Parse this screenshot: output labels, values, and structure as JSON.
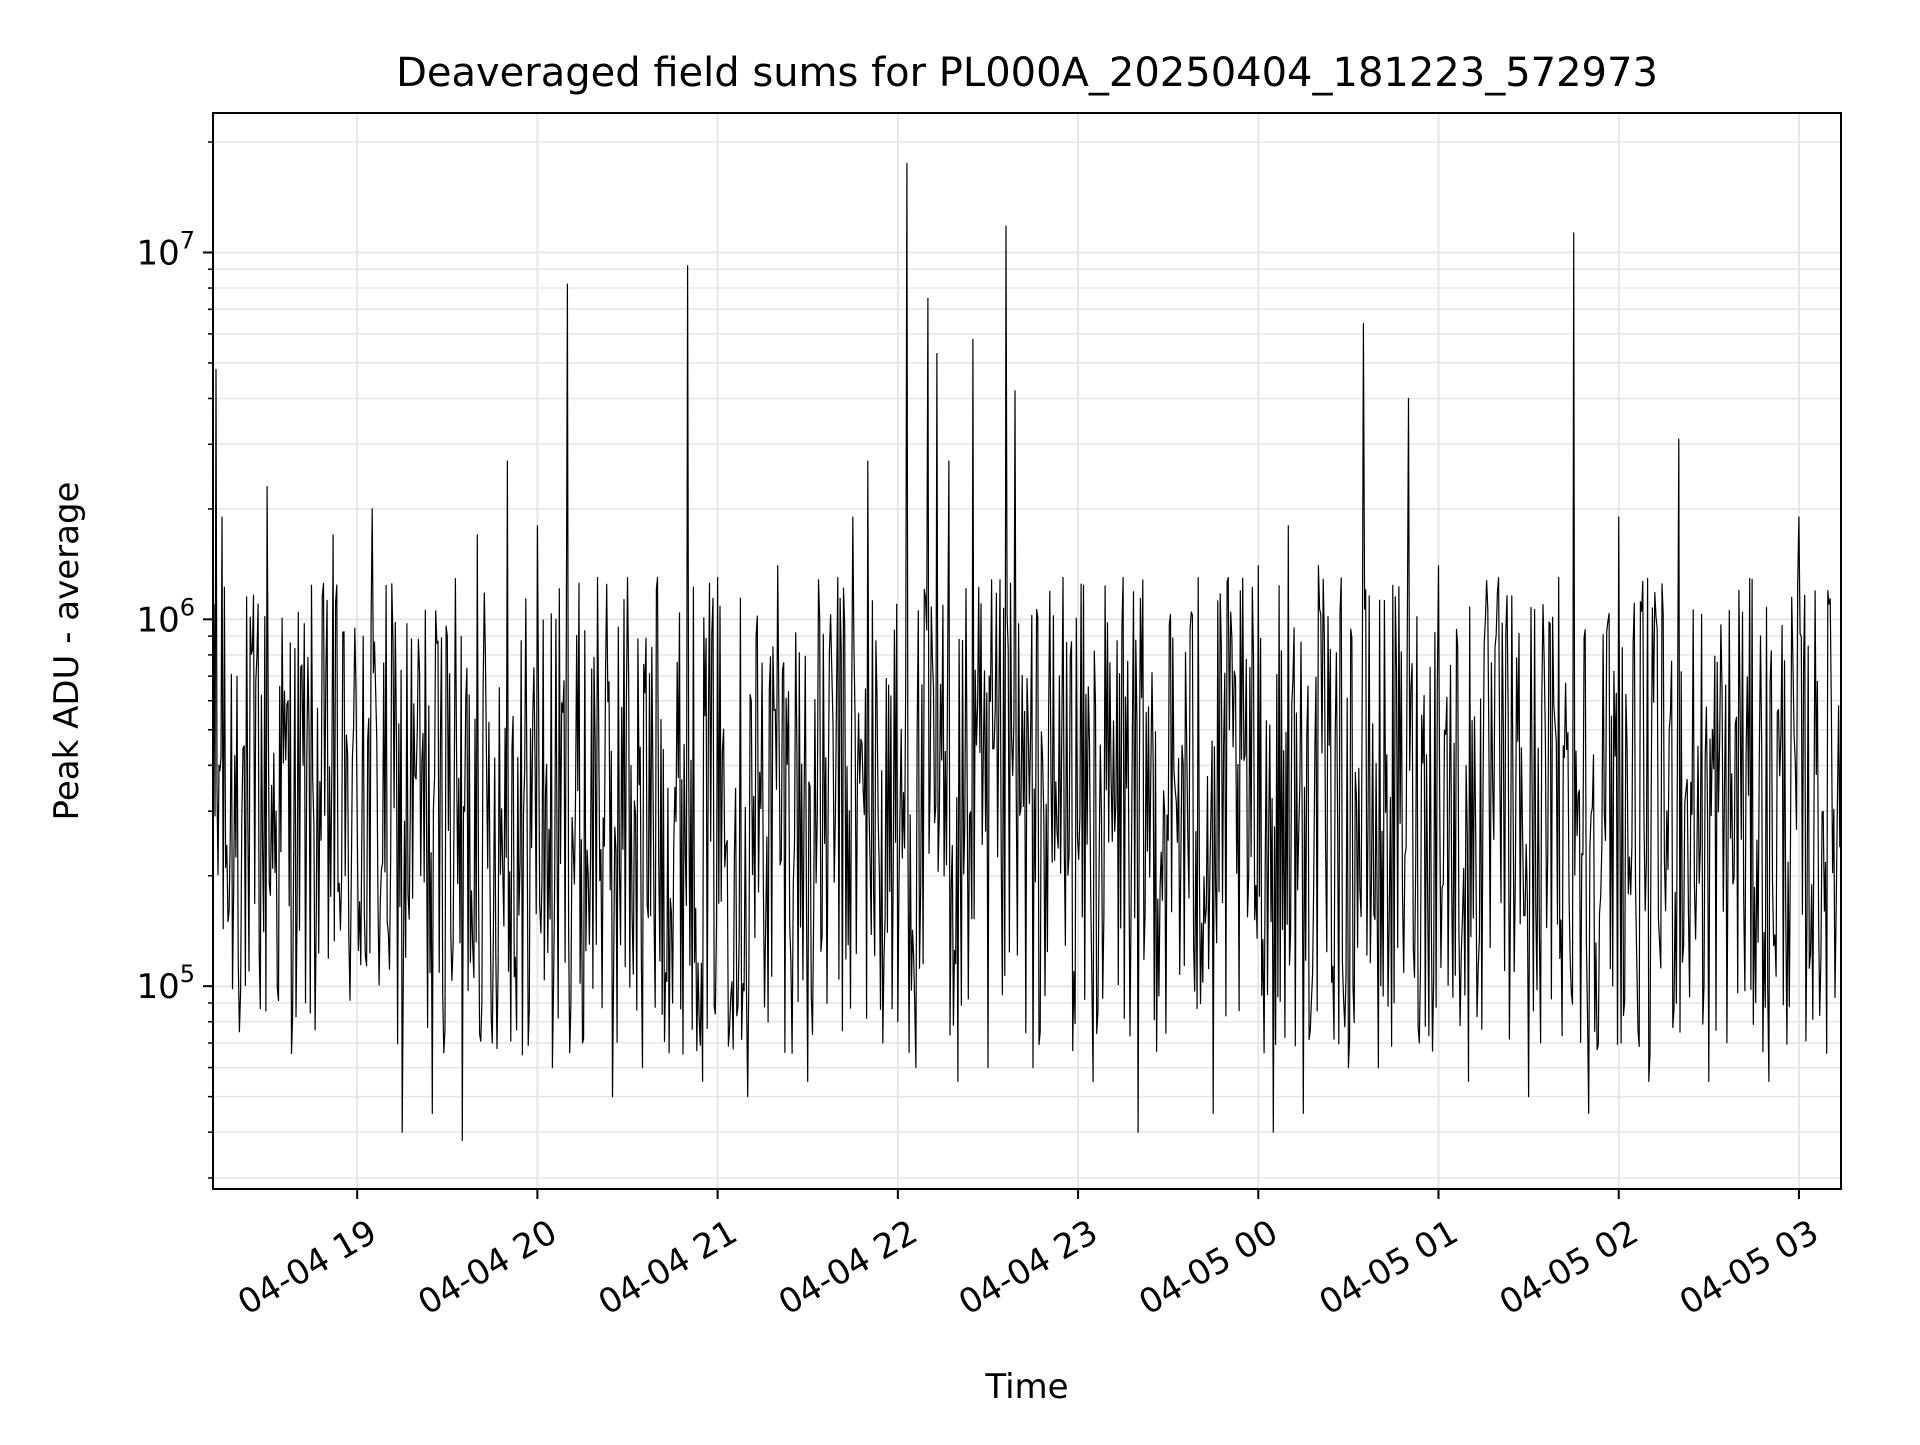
{
  "chart_data": {
    "type": "line",
    "title": "Deaveraged field sums for PL000A_20250404_181223_572973",
    "xlabel": "Time",
    "ylabel": "Peak ADU - average",
    "yscale": "log",
    "xlim": [
      "2025-04-04 18:12",
      "2025-04-05 03:14"
    ],
    "ylim": [
      28000,
      24000000
    ],
    "grid": true,
    "line_color": "#000000",
    "x_ticks": [
      {
        "label": "04-04 19",
        "t": "2025-04-04 19:00"
      },
      {
        "label": "04-04 20",
        "t": "2025-04-04 20:00"
      },
      {
        "label": "04-04 21",
        "t": "2025-04-04 21:00"
      },
      {
        "label": "04-04 22",
        "t": "2025-04-04 22:00"
      },
      {
        "label": "04-04 23",
        "t": "2025-04-04 23:00"
      },
      {
        "label": "04-05 00",
        "t": "2025-04-05 00:00"
      },
      {
        "label": "04-05 01",
        "t": "2025-04-05 01:00"
      },
      {
        "label": "04-05 02",
        "t": "2025-04-05 02:00"
      },
      {
        "label": "04-05 03",
        "t": "2025-04-05 03:00"
      }
    ],
    "y_ticks": [
      {
        "base": "10",
        "exp": "5",
        "value": 100000
      },
      {
        "base": "10",
        "exp": "6",
        "value": 1000000
      },
      {
        "base": "10",
        "exp": "7",
        "value": 10000000
      }
    ],
    "series": [
      {
        "points": [
          [
            "2025-04-04 18:12",
            900000
          ],
          [
            "2025-04-04 18:13",
            4800000
          ],
          [
            "2025-04-04 18:14",
            400000
          ],
          [
            "2025-04-04 18:15",
            1900000
          ],
          [
            "2025-04-04 18:17",
            150000
          ],
          [
            "2025-04-04 18:20",
            700000
          ],
          [
            "2025-04-04 18:24",
            110000
          ],
          [
            "2025-04-04 18:27",
            1100000
          ],
          [
            "2025-04-04 18:30",
            2300000
          ],
          [
            "2025-04-04 18:33",
            300000
          ],
          [
            "2025-04-04 18:37",
            600000
          ],
          [
            "2025-04-04 18:40",
            160000
          ],
          [
            "2025-04-04 18:44",
            500000
          ],
          [
            "2025-04-04 18:48",
            250000
          ],
          [
            "2025-04-04 18:52",
            1700000
          ],
          [
            "2025-04-04 18:56",
            200000
          ],
          [
            "2025-04-04 19:02",
            900000
          ],
          [
            "2025-04-04 19:05",
            2000000
          ],
          [
            "2025-04-04 19:10",
            150000
          ],
          [
            "2025-04-04 19:15",
            40000
          ],
          [
            "2025-04-04 19:20",
            500000
          ],
          [
            "2025-04-04 19:25",
            45000
          ],
          [
            "2025-04-04 19:30",
            900000
          ],
          [
            "2025-04-04 19:35",
            38000
          ],
          [
            "2025-04-04 19:40",
            1700000
          ],
          [
            "2025-04-04 19:45",
            70000
          ],
          [
            "2025-04-04 19:50",
            2700000
          ],
          [
            "2025-04-04 19:55",
            65000
          ],
          [
            "2025-04-04 20:00",
            1800000
          ],
          [
            "2025-04-04 20:05",
            60000
          ],
          [
            "2025-04-04 20:10",
            8200000
          ],
          [
            "2025-04-04 20:15",
            70000
          ],
          [
            "2025-04-04 20:20",
            1300000
          ],
          [
            "2025-04-04 20:25",
            50000
          ],
          [
            "2025-04-04 20:30",
            1300000
          ],
          [
            "2025-04-04 20:35",
            60000
          ],
          [
            "2025-04-04 20:40",
            1300000
          ],
          [
            "2025-04-04 20:45",
            90000
          ],
          [
            "2025-04-04 20:50",
            9200000
          ],
          [
            "2025-04-04 20:55",
            55000
          ],
          [
            "2025-04-04 21:00",
            1300000
          ],
          [
            "2025-04-04 21:10",
            50000
          ],
          [
            "2025-04-04 21:20",
            1400000
          ],
          [
            "2025-04-04 21:30",
            55000
          ],
          [
            "2025-04-04 21:40",
            1300000
          ],
          [
            "2025-04-04 21:45",
            1900000
          ],
          [
            "2025-04-04 21:50",
            2700000
          ],
          [
            "2025-04-04 21:55",
            70000
          ],
          [
            "2025-04-04 22:00",
            80000
          ],
          [
            "2025-04-04 22:03",
            17500000
          ],
          [
            "2025-04-04 22:06",
            60000
          ],
          [
            "2025-04-04 22:10",
            7500000
          ],
          [
            "2025-04-04 22:13",
            5300000
          ],
          [
            "2025-04-04 22:17",
            2700000
          ],
          [
            "2025-04-04 22:20",
            55000
          ],
          [
            "2025-04-04 22:25",
            5800000
          ],
          [
            "2025-04-04 22:30",
            60000
          ],
          [
            "2025-04-04 22:36",
            11800000
          ],
          [
            "2025-04-04 22:39",
            4200000
          ],
          [
            "2025-04-04 22:45",
            60000
          ],
          [
            "2025-04-04 22:55",
            1300000
          ],
          [
            "2025-04-04 23:05",
            55000
          ],
          [
            "2025-04-04 23:15",
            1300000
          ],
          [
            "2025-04-04 23:20",
            40000
          ],
          [
            "2025-04-04 23:25",
            400000
          ],
          [
            "2025-04-04 23:30",
            250000
          ],
          [
            "2025-04-04 23:35",
            400000
          ],
          [
            "2025-04-04 23:40",
            1300000
          ],
          [
            "2025-04-04 23:45",
            45000
          ],
          [
            "2025-04-04 23:50",
            1300000
          ],
          [
            "2025-04-05 00:00",
            1400000
          ],
          [
            "2025-04-05 00:05",
            40000
          ],
          [
            "2025-04-05 00:10",
            1800000
          ],
          [
            "2025-04-05 00:15",
            45000
          ],
          [
            "2025-04-05 00:20",
            1400000
          ],
          [
            "2025-04-05 00:30",
            60000
          ],
          [
            "2025-04-05 00:35",
            6400000
          ],
          [
            "2025-04-05 00:40",
            60000
          ],
          [
            "2025-04-05 00:50",
            4000000
          ],
          [
            "2025-04-05 01:00",
            1400000
          ],
          [
            "2025-04-05 01:10",
            55000
          ],
          [
            "2025-04-05 01:20",
            1300000
          ],
          [
            "2025-04-05 01:30",
            50000
          ],
          [
            "2025-04-05 01:40",
            1300000
          ],
          [
            "2025-04-05 01:45",
            11300000
          ],
          [
            "2025-04-05 01:50",
            45000
          ],
          [
            "2025-04-05 02:00",
            1900000
          ],
          [
            "2025-04-05 02:10",
            55000
          ],
          [
            "2025-04-05 02:20",
            3100000
          ],
          [
            "2025-04-05 02:30",
            55000
          ],
          [
            "2025-04-05 02:40",
            1200000
          ],
          [
            "2025-04-05 02:50",
            55000
          ],
          [
            "2025-04-05 03:00",
            1900000
          ],
          [
            "2025-04-05 03:05",
            300000
          ],
          [
            "2025-04-05 03:10",
            1100000
          ],
          [
            "2025-04-05 03:14",
            600000
          ]
        ]
      }
    ]
  }
}
